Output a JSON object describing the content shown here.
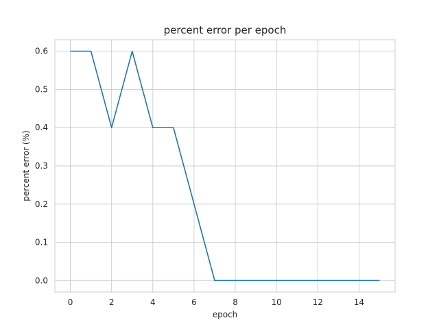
{
  "chart_data": {
    "type": "line",
    "title": "percent error per epoch",
    "xlabel": "epoch",
    "ylabel": "percent error (%)",
    "xlim": [
      -0.75,
      15.75
    ],
    "ylim": [
      -0.03,
      0.63
    ],
    "xticks": [
      0,
      2,
      4,
      6,
      8,
      10,
      12,
      14
    ],
    "yticks": [
      0.0,
      0.1,
      0.2,
      0.3,
      0.4,
      0.5,
      0.6
    ],
    "xtick_labels": [
      "0",
      "2",
      "4",
      "6",
      "8",
      "10",
      "12",
      "14"
    ],
    "ytick_labels": [
      "0.0",
      "0.1",
      "0.2",
      "0.3",
      "0.4",
      "0.5",
      "0.6"
    ],
    "grid": true,
    "legend": false,
    "series": [
      {
        "color": "#1f77b4",
        "x": [
          0,
          1,
          2,
          3,
          4,
          5,
          6,
          7,
          8,
          9,
          10,
          11,
          12,
          13,
          14,
          15
        ],
        "y": [
          0.6,
          0.6,
          0.4,
          0.6,
          0.4,
          0.4,
          0.2,
          0.0,
          0.0,
          0.0,
          0.0,
          0.0,
          0.0,
          0.0,
          0.0,
          0.0
        ]
      }
    ]
  }
}
